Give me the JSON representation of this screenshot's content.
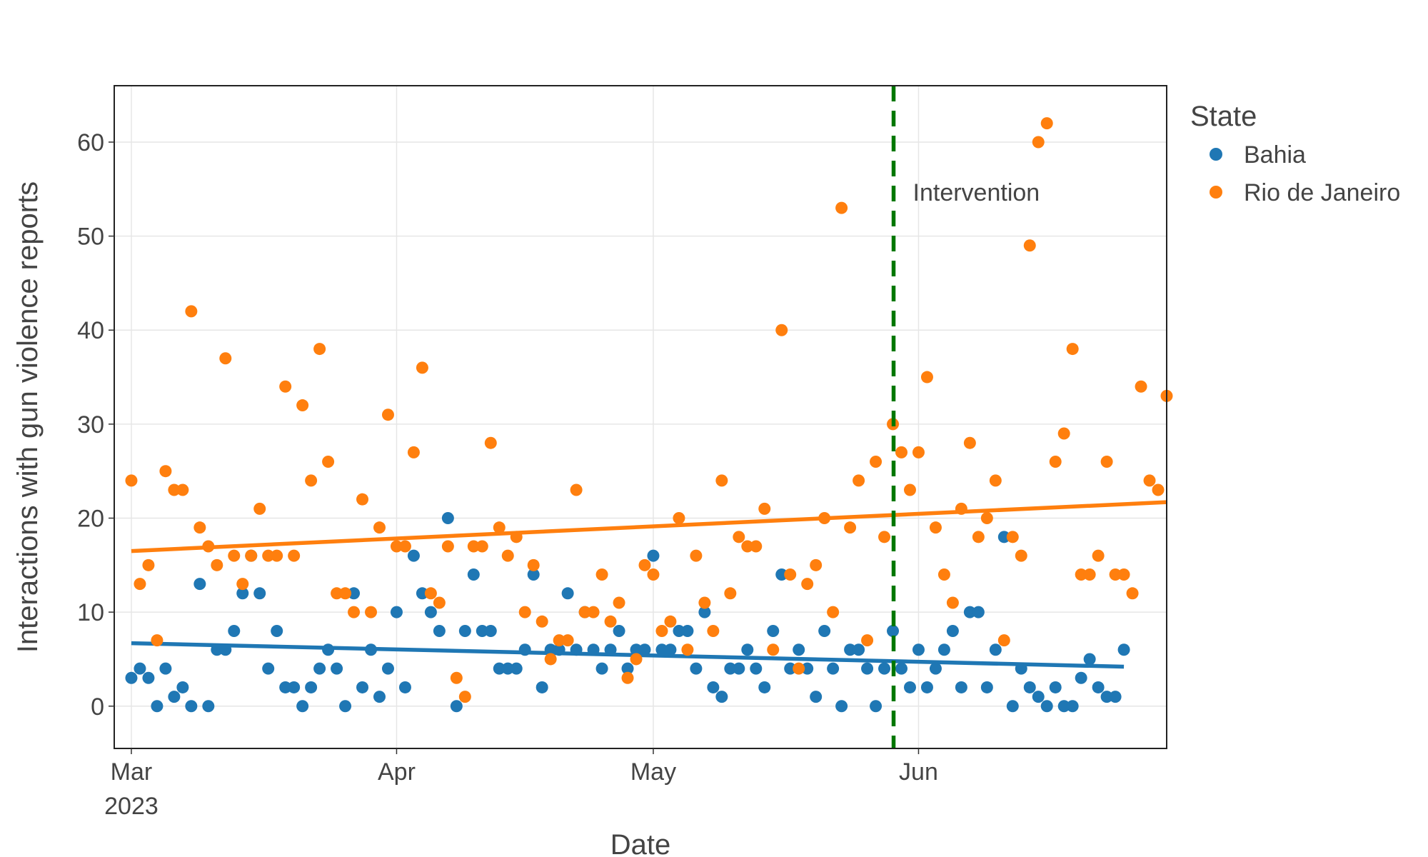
{
  "chart_data": {
    "type": "scatter",
    "title": "",
    "xlabel": "Date",
    "ylabel": "Interactions with gun violence reports",
    "x_axis": {
      "type": "date",
      "range": [
        "2023-02-27",
        "2023-06-30"
      ],
      "ticks": [
        {
          "date": "2023-03-01",
          "label": "Mar",
          "sublabel": "2023"
        },
        {
          "date": "2023-04-01",
          "label": "Apr",
          "sublabel": ""
        },
        {
          "date": "2023-05-01",
          "label": "May",
          "sublabel": ""
        },
        {
          "date": "2023-06-01",
          "label": "Jun",
          "sublabel": ""
        }
      ]
    },
    "y_axis": {
      "range": [
        -4.5,
        66
      ],
      "ticks": [
        0,
        10,
        20,
        30,
        40,
        50,
        60
      ]
    },
    "grid": true,
    "legend": {
      "title": "State",
      "position": "right"
    },
    "annotation": {
      "label": "Intervention",
      "date": "2023-05-29",
      "color": "#007700",
      "style": "dashed"
    },
    "start_date": "2023-03-01",
    "series": [
      {
        "name": "Bahia",
        "color": "#1f77b4",
        "trend": {
          "start": 6.7,
          "end": 4.2
        },
        "values": [
          3,
          4,
          3,
          0,
          4,
          1,
          2,
          0,
          13,
          0,
          6,
          6,
          8,
          12,
          16,
          12,
          4,
          8,
          2,
          2,
          0,
          2,
          4,
          6,
          4,
          0,
          12,
          2,
          6,
          1,
          4,
          10,
          2,
          16,
          12,
          10,
          8,
          20,
          0,
          8,
          14,
          8,
          8,
          4,
          4,
          4,
          6,
          14,
          2,
          6,
          6,
          12,
          6,
          10,
          6,
          4,
          6,
          8,
          4,
          6,
          6,
          16,
          6,
          6,
          8,
          8,
          4,
          10,
          2,
          1,
          4,
          4,
          6,
          4,
          2,
          8,
          14,
          4,
          6,
          4,
          1,
          8,
          4,
          0,
          6,
          6,
          4,
          0,
          4,
          8,
          4,
          2,
          6,
          2,
          4,
          6,
          8,
          2,
          10,
          10,
          2,
          6,
          18,
          0,
          4,
          2,
          1,
          0,
          2,
          0,
          0,
          3,
          5,
          2,
          1,
          1,
          6
        ]
      },
      {
        "name": "Rio de Janeiro",
        "color": "#ff7f0e",
        "trend": {
          "start": 16.5,
          "end": 21.7
        },
        "values": [
          24,
          13,
          15,
          7,
          25,
          23,
          23,
          42,
          19,
          17,
          15,
          37,
          16,
          13,
          16,
          21,
          16,
          16,
          34,
          16,
          32,
          24,
          38,
          26,
          12,
          12,
          10,
          22,
          10,
          19,
          31,
          17,
          17,
          27,
          36,
          12,
          11,
          17,
          3,
          1,
          17,
          17,
          28,
          19,
          16,
          18,
          10,
          15,
          9,
          5,
          7,
          7,
          23,
          10,
          10,
          14,
          9,
          11,
          3,
          5,
          15,
          14,
          8,
          9,
          20,
          6,
          16,
          11,
          8,
          24,
          12,
          18,
          17,
          17,
          21,
          6,
          40,
          14,
          4,
          13,
          15,
          20,
          10,
          53,
          19,
          24,
          7,
          26,
          18,
          30,
          27,
          23,
          27,
          35,
          19,
          14,
          11,
          21,
          28,
          18,
          20,
          24,
          7,
          18,
          16,
          49,
          60,
          62,
          26,
          29,
          38,
          14,
          14,
          16,
          26,
          14,
          14,
          12,
          34,
          24,
          23,
          33
        ]
      }
    ]
  }
}
